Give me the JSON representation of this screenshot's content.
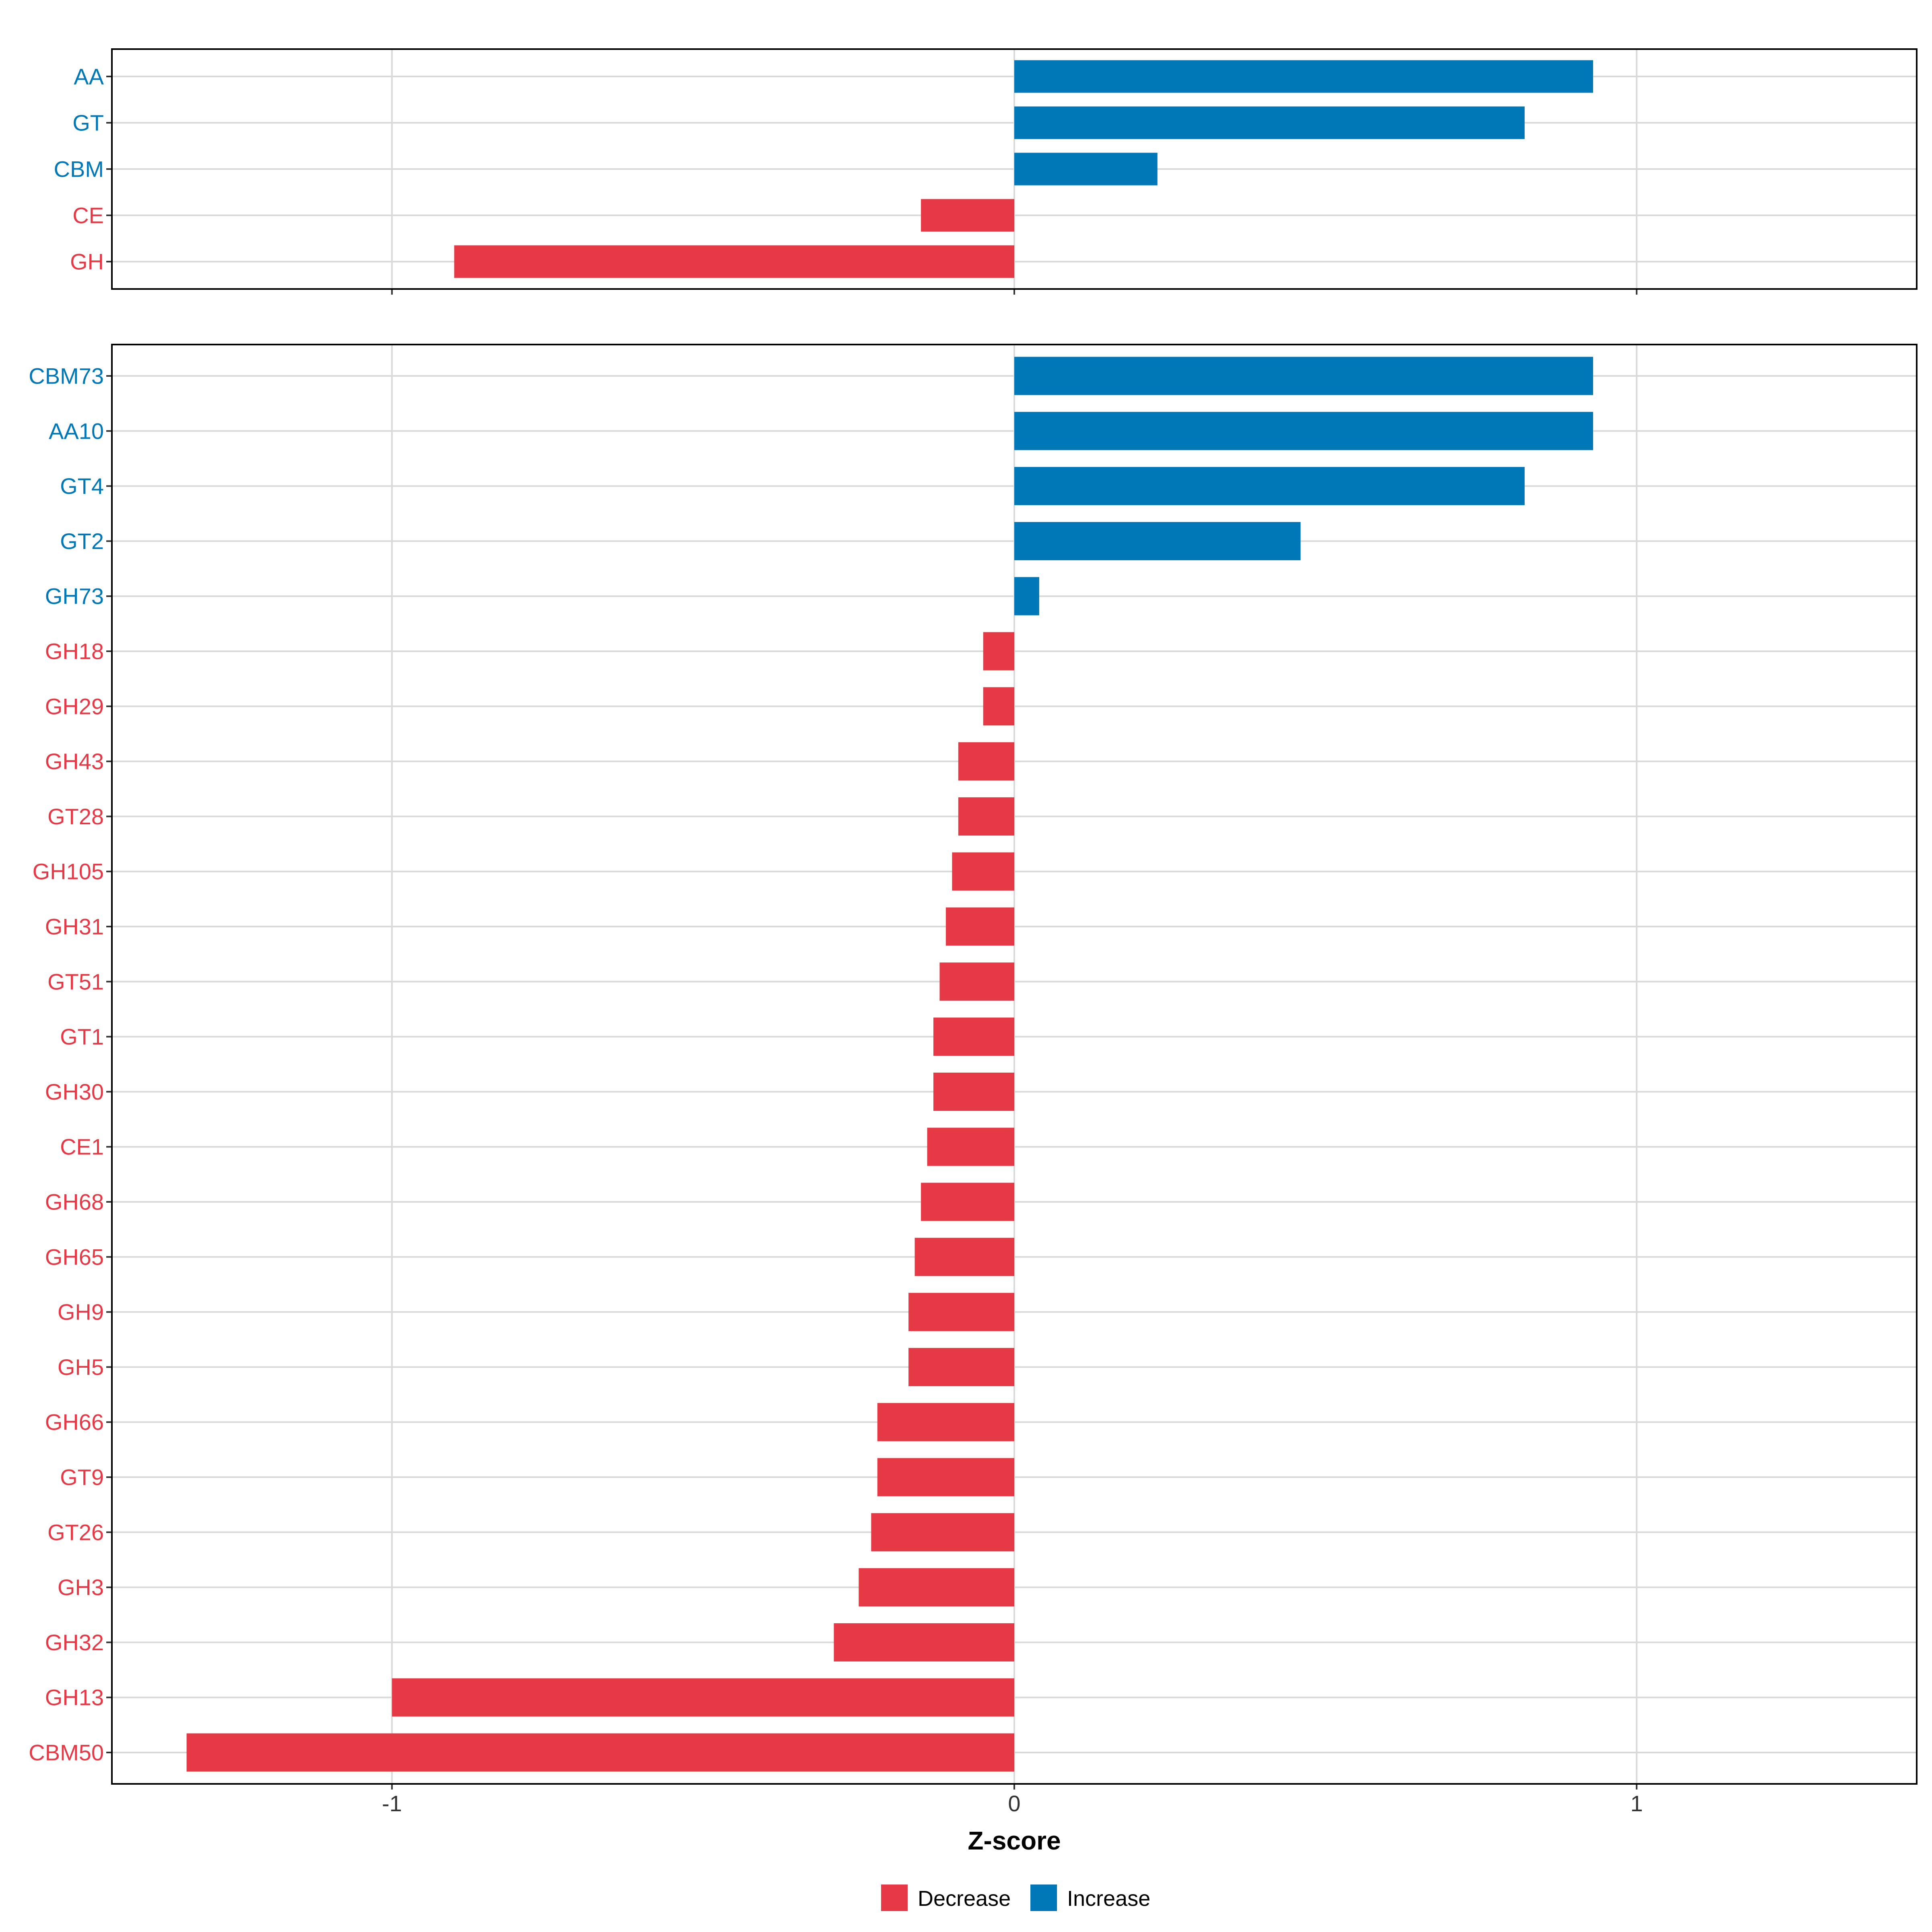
{
  "colors": {
    "decrease": "#E63946",
    "increase": "#0077B6",
    "grid": "#D9D9D9",
    "frame": "#000000",
    "text": "#333333"
  },
  "chart_data": [
    {
      "type": "bar",
      "orientation": "horizontal",
      "panel": "top",
      "categories": [
        "AA",
        "GT",
        "CBM",
        "CE",
        "GH"
      ],
      "values": [
        0.93,
        0.82,
        0.23,
        -0.15,
        -0.9
      ],
      "xlim": [
        -1.45,
        1.45
      ],
      "xticks": [
        -1,
        0,
        1
      ],
      "grid": true
    },
    {
      "type": "bar",
      "orientation": "horizontal",
      "panel": "bottom",
      "categories": [
        "CBM73",
        "AA10",
        "GT4",
        "GT2",
        "GH73",
        "GH18",
        "GH29",
        "GH43",
        "GT28",
        "GH105",
        "GH31",
        "GT51",
        "GT1",
        "GH30",
        "CE1",
        "GH68",
        "GH65",
        "GH9",
        "GH5",
        "GH66",
        "GT9",
        "GT26",
        "GH3",
        "GH32",
        "GH13",
        "CBM50"
      ],
      "values": [
        0.93,
        0.93,
        0.82,
        0.46,
        0.04,
        -0.05,
        -0.05,
        -0.09,
        -0.09,
        -0.1,
        -0.11,
        -0.12,
        -0.13,
        -0.13,
        -0.14,
        -0.15,
        -0.16,
        -0.17,
        -0.17,
        -0.22,
        -0.22,
        -0.23,
        -0.25,
        -0.29,
        -1.0,
        -1.33
      ],
      "xlim": [
        -1.45,
        1.45
      ],
      "xticks": [
        -1,
        0,
        1
      ],
      "xlabel": "Z-score",
      "grid": true
    }
  ],
  "axis": {
    "xtick_labels": [
      "-1",
      "0",
      "1"
    ],
    "xlabel": "Z-score"
  },
  "legend": {
    "placement": "bottom",
    "items": [
      {
        "label": "Decrease",
        "color_key": "decrease"
      },
      {
        "label": "Increase",
        "color_key": "increase"
      }
    ]
  }
}
